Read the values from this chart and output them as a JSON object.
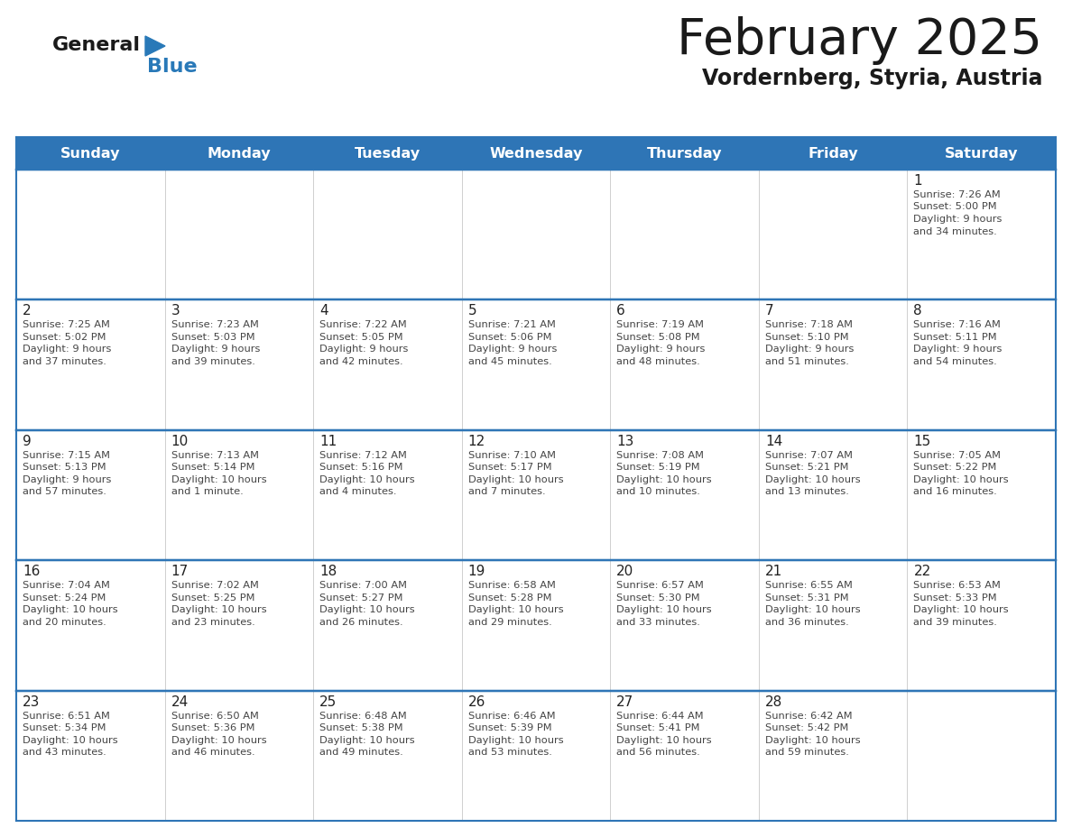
{
  "title": "February 2025",
  "subtitle": "Vordernberg, Styria, Austria",
  "header_bg": "#2E75B6",
  "header_text_color": "#FFFFFF",
  "border_color": "#2E75B6",
  "cell_bg": "#FFFFFF",
  "text_color": "#333333",
  "info_text_color": "#555555",
  "days_of_week": [
    "Sunday",
    "Monday",
    "Tuesday",
    "Wednesday",
    "Thursday",
    "Friday",
    "Saturday"
  ],
  "calendar_data": [
    [
      {
        "day": "",
        "info": ""
      },
      {
        "day": "",
        "info": ""
      },
      {
        "day": "",
        "info": ""
      },
      {
        "day": "",
        "info": ""
      },
      {
        "day": "",
        "info": ""
      },
      {
        "day": "",
        "info": ""
      },
      {
        "day": "1",
        "info": "Sunrise: 7:26 AM\nSunset: 5:00 PM\nDaylight: 9 hours\nand 34 minutes."
      }
    ],
    [
      {
        "day": "2",
        "info": "Sunrise: 7:25 AM\nSunset: 5:02 PM\nDaylight: 9 hours\nand 37 minutes."
      },
      {
        "day": "3",
        "info": "Sunrise: 7:23 AM\nSunset: 5:03 PM\nDaylight: 9 hours\nand 39 minutes."
      },
      {
        "day": "4",
        "info": "Sunrise: 7:22 AM\nSunset: 5:05 PM\nDaylight: 9 hours\nand 42 minutes."
      },
      {
        "day": "5",
        "info": "Sunrise: 7:21 AM\nSunset: 5:06 PM\nDaylight: 9 hours\nand 45 minutes."
      },
      {
        "day": "6",
        "info": "Sunrise: 7:19 AM\nSunset: 5:08 PM\nDaylight: 9 hours\nand 48 minutes."
      },
      {
        "day": "7",
        "info": "Sunrise: 7:18 AM\nSunset: 5:10 PM\nDaylight: 9 hours\nand 51 minutes."
      },
      {
        "day": "8",
        "info": "Sunrise: 7:16 AM\nSunset: 5:11 PM\nDaylight: 9 hours\nand 54 minutes."
      }
    ],
    [
      {
        "day": "9",
        "info": "Sunrise: 7:15 AM\nSunset: 5:13 PM\nDaylight: 9 hours\nand 57 minutes."
      },
      {
        "day": "10",
        "info": "Sunrise: 7:13 AM\nSunset: 5:14 PM\nDaylight: 10 hours\nand 1 minute."
      },
      {
        "day": "11",
        "info": "Sunrise: 7:12 AM\nSunset: 5:16 PM\nDaylight: 10 hours\nand 4 minutes."
      },
      {
        "day": "12",
        "info": "Sunrise: 7:10 AM\nSunset: 5:17 PM\nDaylight: 10 hours\nand 7 minutes."
      },
      {
        "day": "13",
        "info": "Sunrise: 7:08 AM\nSunset: 5:19 PM\nDaylight: 10 hours\nand 10 minutes."
      },
      {
        "day": "14",
        "info": "Sunrise: 7:07 AM\nSunset: 5:21 PM\nDaylight: 10 hours\nand 13 minutes."
      },
      {
        "day": "15",
        "info": "Sunrise: 7:05 AM\nSunset: 5:22 PM\nDaylight: 10 hours\nand 16 minutes."
      }
    ],
    [
      {
        "day": "16",
        "info": "Sunrise: 7:04 AM\nSunset: 5:24 PM\nDaylight: 10 hours\nand 20 minutes."
      },
      {
        "day": "17",
        "info": "Sunrise: 7:02 AM\nSunset: 5:25 PM\nDaylight: 10 hours\nand 23 minutes."
      },
      {
        "day": "18",
        "info": "Sunrise: 7:00 AM\nSunset: 5:27 PM\nDaylight: 10 hours\nand 26 minutes."
      },
      {
        "day": "19",
        "info": "Sunrise: 6:58 AM\nSunset: 5:28 PM\nDaylight: 10 hours\nand 29 minutes."
      },
      {
        "day": "20",
        "info": "Sunrise: 6:57 AM\nSunset: 5:30 PM\nDaylight: 10 hours\nand 33 minutes."
      },
      {
        "day": "21",
        "info": "Sunrise: 6:55 AM\nSunset: 5:31 PM\nDaylight: 10 hours\nand 36 minutes."
      },
      {
        "day": "22",
        "info": "Sunrise: 6:53 AM\nSunset: 5:33 PM\nDaylight: 10 hours\nand 39 minutes."
      }
    ],
    [
      {
        "day": "23",
        "info": "Sunrise: 6:51 AM\nSunset: 5:34 PM\nDaylight: 10 hours\nand 43 minutes."
      },
      {
        "day": "24",
        "info": "Sunrise: 6:50 AM\nSunset: 5:36 PM\nDaylight: 10 hours\nand 46 minutes."
      },
      {
        "day": "25",
        "info": "Sunrise: 6:48 AM\nSunset: 5:38 PM\nDaylight: 10 hours\nand 49 minutes."
      },
      {
        "day": "26",
        "info": "Sunrise: 6:46 AM\nSunset: 5:39 PM\nDaylight: 10 hours\nand 53 minutes."
      },
      {
        "day": "27",
        "info": "Sunrise: 6:44 AM\nSunset: 5:41 PM\nDaylight: 10 hours\nand 56 minutes."
      },
      {
        "day": "28",
        "info": "Sunrise: 6:42 AM\nSunset: 5:42 PM\nDaylight: 10 hours\nand 59 minutes."
      },
      {
        "day": "",
        "info": ""
      }
    ]
  ],
  "logo_general_color": "#1a1a1a",
  "logo_blue_color": "#2979B8",
  "logo_triangle_color": "#2979B8"
}
